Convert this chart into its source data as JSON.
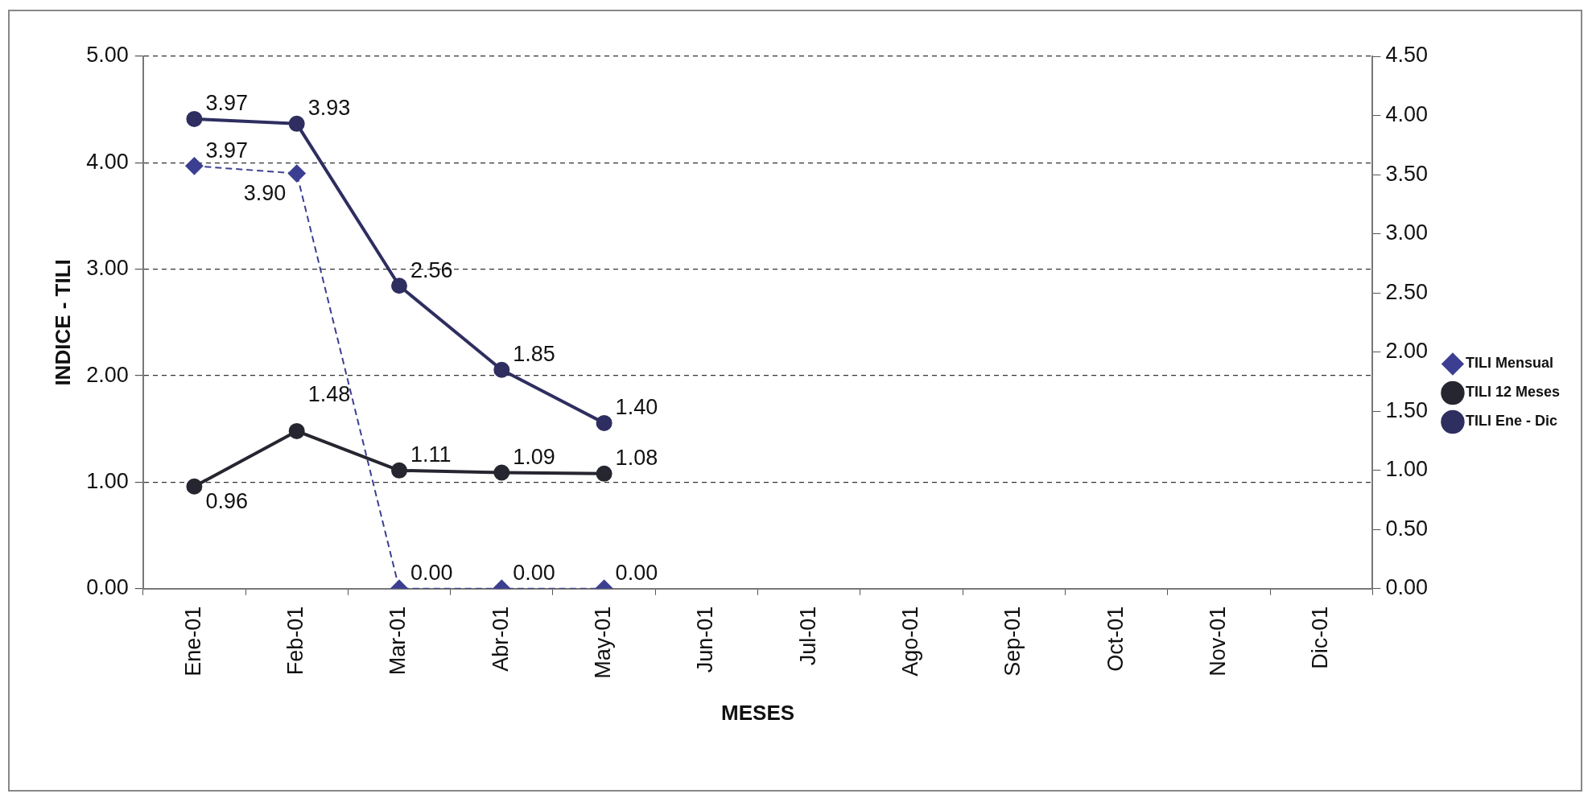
{
  "chart_data": {
    "type": "line",
    "xlabel": "MESES",
    "ylabel": "INDICE - TILI",
    "categories": [
      "Ene-01",
      "Feb-01",
      "Mar-01",
      "Abr-01",
      "May-01",
      "Jun-01",
      "Jul-01",
      "Ago-01",
      "Sep-01",
      "Oct-01",
      "Nov-01",
      "Dic-01"
    ],
    "series": [
      {
        "name": "TILI Mensual",
        "color": "#3c3f91",
        "marker": "diamond",
        "line_style": "dashed",
        "values": [
          3.97,
          3.9,
          0.0,
          0.0,
          0.0,
          null,
          null,
          null,
          null,
          null,
          null,
          null
        ],
        "value_labels": [
          "3.97",
          "3.90",
          "0.00",
          "0.00",
          "0.00",
          null,
          null,
          null,
          null,
          null,
          null,
          null
        ]
      },
      {
        "name": "TILI 12 Meses",
        "color": "#262630",
        "marker": "circle",
        "line_style": "solid",
        "values": [
          0.96,
          1.48,
          1.11,
          1.09,
          1.08,
          null,
          null,
          null,
          null,
          null,
          null,
          null
        ],
        "value_labels": [
          "0.96",
          "1.48",
          "1.11",
          "1.09",
          "1.08",
          null,
          null,
          null,
          null,
          null,
          null,
          null
        ]
      },
      {
        "name": "TILI Ene - Dic",
        "color": "#2e2e60",
        "marker": "circle",
        "line_style": "solid",
        "axis": "y2",
        "values": [
          3.97,
          3.93,
          2.56,
          1.85,
          1.4,
          null,
          null,
          null,
          null,
          null,
          null,
          null
        ],
        "value_labels": [
          "3.97",
          "3.93",
          "2.56",
          "1.85",
          "1.40",
          null,
          null,
          null,
          null,
          null,
          null,
          null
        ]
      }
    ],
    "ylim": [
      0,
      5
    ],
    "yticks": [
      {
        "value": 0,
        "label": "0.00"
      },
      {
        "value": 1,
        "label": "1.00"
      },
      {
        "value": 2,
        "label": "2.00"
      },
      {
        "value": 3,
        "label": "3.00"
      },
      {
        "value": 4,
        "label": "4.00"
      },
      {
        "value": 5,
        "label": "5.00"
      }
    ],
    "y2lim": [
      0,
      4.5
    ],
    "y2ticks": [
      {
        "value": 0,
        "label": "0.00"
      },
      {
        "value": 0.5,
        "label": "0.50"
      },
      {
        "value": 1,
        "label": "1.00"
      },
      {
        "value": 1.5,
        "label": "1.50"
      },
      {
        "value": 2,
        "label": "2.00"
      },
      {
        "value": 2.5,
        "label": "2.50"
      },
      {
        "value": 3,
        "label": "3.00"
      },
      {
        "value": 3.5,
        "label": "3.50"
      },
      {
        "value": 4,
        "label": "4.00"
      },
      {
        "value": 4.5,
        "label": "4.50"
      }
    ],
    "grid": "y",
    "legend": "right"
  }
}
